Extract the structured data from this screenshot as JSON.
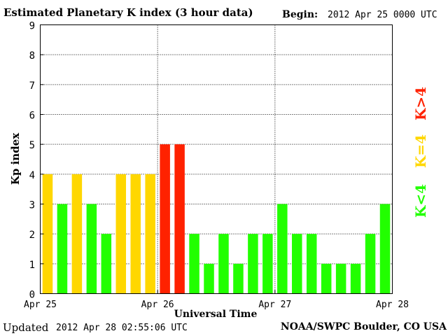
{
  "header": {
    "title": "Estimated Planetary K index (3 hour data)",
    "begin_label": "Begin:",
    "begin_value": "2012 Apr 25 0000 UTC"
  },
  "footer": {
    "updated_label": "Updated",
    "updated_value": "2012 Apr 28 02:55:06 UTC",
    "credit": "NOAA/SWPC Boulder, CO USA"
  },
  "chart_data": {
    "type": "bar",
    "title": "Estimated Planetary K index (3 hour data)",
    "xlabel": "Universal Time",
    "ylabel": "Kp index",
    "ylim": [
      0,
      9
    ],
    "yticks": [
      "0",
      "1",
      "2",
      "3",
      "4",
      "5",
      "6",
      "7",
      "8",
      "9"
    ],
    "xticks": [
      "Apr 25",
      "Apr 26",
      "Apr 27",
      "Apr 28"
    ],
    "grid": true,
    "values": [
      4,
      3,
      4,
      3,
      2,
      4,
      4,
      4,
      5,
      5,
      2,
      1,
      2,
      1,
      2,
      2,
      3,
      2,
      2,
      1,
      1,
      1,
      2,
      3
    ],
    "color_rule": {
      "below_4": "#22ff00",
      "equal_4": "#ffd700",
      "above_4": "#ff2200"
    },
    "legend": [
      {
        "label": "K<4",
        "color": "#22ff00"
      },
      {
        "label": "K=4",
        "color": "#ffd700"
      },
      {
        "label": "K>4",
        "color": "#ff2200"
      }
    ]
  }
}
